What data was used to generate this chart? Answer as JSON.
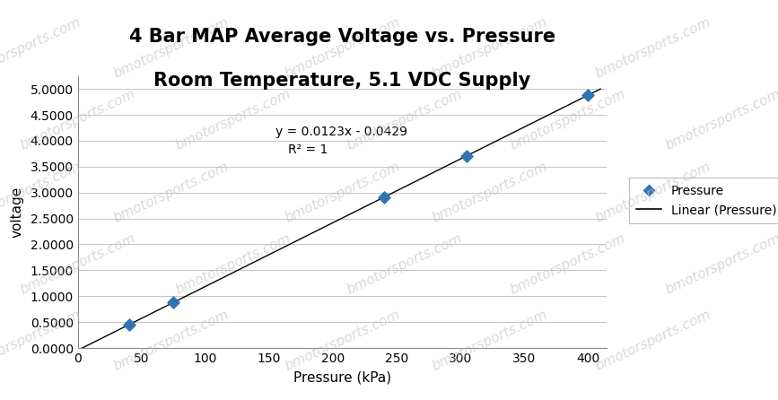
{
  "title_line1": "4 Bar MAP Average Voltage vs. Pressure",
  "title_line2": "Room Temperature, 5.1 VDC Supply",
  "xlabel": "Pressure (kPa)",
  "ylabel": "voltage",
  "x_data": [
    40,
    75,
    240,
    305,
    400
  ],
  "y_data": [
    0.4488,
    0.8796,
    2.9091,
    3.7036,
    4.8771
  ],
  "slope": 0.0123,
  "intercept": -0.0429,
  "equation": "y = 0.0123x - 0.0429",
  "r_squared": "R² = 1",
  "xlim": [
    0,
    415
  ],
  "ylim": [
    0.0,
    5.25
  ],
  "xticks": [
    0,
    50,
    100,
    150,
    200,
    250,
    300,
    350,
    400
  ],
  "yticks": [
    0.0,
    0.5,
    1.0,
    1.5,
    2.0,
    2.5,
    3.0,
    3.5,
    4.0,
    4.5,
    5.0
  ],
  "point_color": "#2E74B5",
  "line_color": "#000000",
  "background_color": "#FFFFFF",
  "plot_bg_color": "#FFFFFF",
  "watermark_color": "#C0C0C0",
  "title_fontsize": 15,
  "axis_label_fontsize": 11,
  "tick_fontsize": 10,
  "legend_marker_color": "#2E74B5",
  "legend_label_pressure": "Pressure",
  "legend_label_linear": "Linear (Pressure)",
  "eq_x": 155,
  "eq_y": 4.1,
  "r2_x": 165,
  "r2_y": 3.75,
  "wm_positions": [
    [
      0.03,
      0.88
    ],
    [
      0.22,
      0.88
    ],
    [
      0.44,
      0.88
    ],
    [
      0.63,
      0.88
    ],
    [
      0.84,
      0.88
    ],
    [
      0.1,
      0.7
    ],
    [
      0.3,
      0.7
    ],
    [
      0.52,
      0.7
    ],
    [
      0.73,
      0.7
    ],
    [
      0.93,
      0.7
    ],
    [
      0.03,
      0.52
    ],
    [
      0.22,
      0.52
    ],
    [
      0.44,
      0.52
    ],
    [
      0.63,
      0.52
    ],
    [
      0.84,
      0.52
    ],
    [
      0.1,
      0.34
    ],
    [
      0.3,
      0.34
    ],
    [
      0.52,
      0.34
    ],
    [
      0.73,
      0.34
    ],
    [
      0.93,
      0.34
    ],
    [
      0.03,
      0.15
    ],
    [
      0.22,
      0.15
    ],
    [
      0.44,
      0.15
    ],
    [
      0.63,
      0.15
    ],
    [
      0.84,
      0.15
    ]
  ]
}
